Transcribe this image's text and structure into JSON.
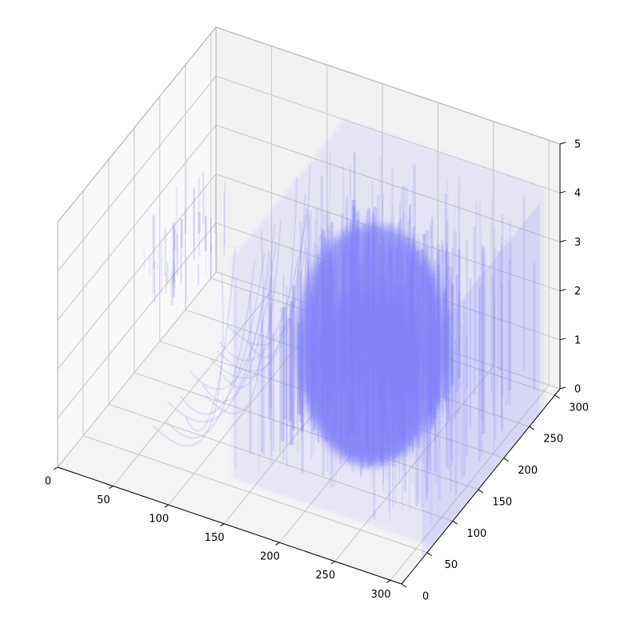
{
  "chart_data": {
    "type": "3d-volume",
    "title": "",
    "xlabel": "",
    "ylabel": "",
    "zlabel": "",
    "xlim": [
      0,
      310
    ],
    "ylim": [
      0,
      310
    ],
    "zlim": [
      0,
      5
    ],
    "x_ticks": [
      "0",
      "50",
      "100",
      "150",
      "200",
      "250",
      "300"
    ],
    "y_ticks": [
      "0",
      "50",
      "100",
      "150",
      "200",
      "250",
      "300"
    ],
    "z_ticks": [
      "0",
      "1",
      "2",
      "3",
      "4",
      "5"
    ],
    "grid": true,
    "volume_color": "#8080f8",
    "pane_colors": {
      "back": "#f2f2f2",
      "side": "#f8f8f8",
      "floor": "#f4f4f4"
    },
    "description_regions": [
      {
        "x_range": [
          130,
          310
        ],
        "y_range": [
          60,
          280
        ],
        "z_range": [
          0,
          4.5
        ],
        "density": "high"
      },
      {
        "x_range": [
          150,
          260
        ],
        "y_range": [
          100,
          240
        ],
        "z_range": [
          0.3,
          4
        ],
        "density": "dense-core"
      },
      {
        "x_range": [
          0,
          40
        ],
        "y_range": [
          160,
          250
        ],
        "z_range": [
          1.3,
          3.2
        ],
        "density": "sparse"
      }
    ]
  }
}
